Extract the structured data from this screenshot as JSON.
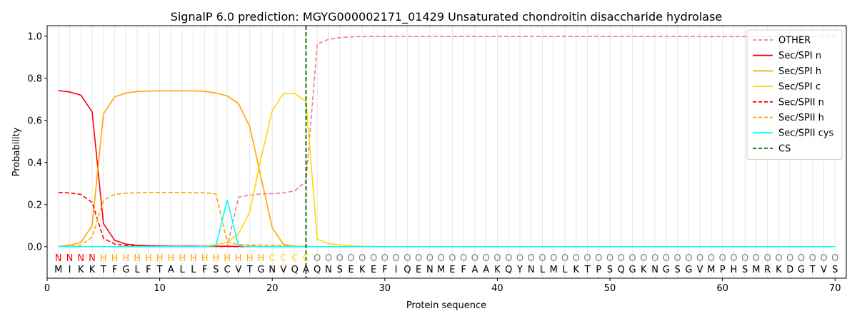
{
  "chart_data": {
    "type": "line",
    "title": "SignalP 6.0 prediction: MGYG000002171_01429 Unsaturated chondroitin disaccharide hydrolase",
    "xlabel": "Protein sequence",
    "ylabel": "Probability",
    "xlim": [
      0,
      71
    ],
    "ylim": [
      -0.15,
      1.05
    ],
    "x_ticks": [
      0,
      10,
      20,
      30,
      40,
      50,
      60,
      70
    ],
    "y_ticks": [
      0.0,
      0.2,
      0.4,
      0.6,
      0.8,
      1.0
    ],
    "x_tick_labels": [
      "0",
      "10",
      "20",
      "30",
      "40",
      "50",
      "60",
      "70"
    ],
    "y_tick_labels": [
      "0.0",
      "0.2",
      "0.4",
      "0.6",
      "0.8",
      "1.0"
    ],
    "grid": "vertical at each residue",
    "legend_position": "top-right",
    "sequence": [
      "M",
      "I",
      "K",
      "K",
      "T",
      "F",
      "G",
      "L",
      "F",
      "T",
      "A",
      "L",
      "L",
      "F",
      "S",
      "C",
      "V",
      "T",
      "G",
      "N",
      "V",
      "Q",
      "A",
      "Q",
      "N",
      "S",
      "E",
      "K",
      "E",
      "F",
      "I",
      "Q",
      "E",
      "N",
      "M",
      "E",
      "F",
      "A",
      "A",
      "K",
      "Q",
      "Y",
      "N",
      "L",
      "M",
      "L",
      "K",
      "T",
      "P",
      "S",
      "Q",
      "G",
      "K",
      "N",
      "G",
      "S",
      "G",
      "V",
      "M",
      "P",
      "H",
      "S",
      "M",
      "R",
      "K",
      "D",
      "G",
      "T",
      "V",
      "S"
    ],
    "region_labels": [
      "N",
      "N",
      "N",
      "N",
      "H",
      "H",
      "H",
      "H",
      "H",
      "H",
      "H",
      "H",
      "H",
      "H",
      "H",
      "H",
      "H",
      "H",
      "H",
      "C",
      "C",
      "C",
      "C",
      "O",
      "O",
      "O",
      "O",
      "O",
      "O",
      "O",
      "O",
      "O",
      "O",
      "O",
      "O",
      "O",
      "O",
      "O",
      "O",
      "O",
      "O",
      "O",
      "O",
      "O",
      "O",
      "O",
      "O",
      "O",
      "O",
      "O",
      "O",
      "O",
      "O",
      "O",
      "O",
      "O",
      "O",
      "O",
      "O",
      "O",
      "O",
      "O",
      "O",
      "O",
      "O",
      "O",
      "O",
      "O",
      "O",
      "O"
    ],
    "region_colors": {
      "N": "#ff0000",
      "H": "#ffa500",
      "C": "#ffd700",
      "O": "#808080"
    },
    "cs_position": 23,
    "series": [
      {
        "name": "OTHER",
        "color": "#f08080",
        "dash": "dashed",
        "values": [
          0.0,
          0.0,
          0.0,
          0.0,
          0.0,
          0.0,
          0.0,
          0.0,
          0.0,
          0.0,
          0.0,
          0.0,
          0.0,
          0.0,
          0.0,
          0.0,
          0.235,
          0.245,
          0.25,
          0.252,
          0.255,
          0.265,
          0.31,
          0.963,
          0.985,
          0.993,
          0.997,
          0.998,
          0.999,
          0.999,
          0.999,
          0.999,
          0.999,
          0.999,
          0.999,
          0.999,
          0.999,
          0.999,
          0.999,
          0.999,
          0.999,
          0.999,
          0.999,
          0.999,
          0.999,
          0.999,
          0.999,
          0.999,
          0.999,
          0.999,
          0.999,
          0.999,
          0.999,
          0.999,
          0.999,
          0.999,
          0.999,
          0.998,
          0.998,
          0.998,
          0.998,
          0.998,
          0.998,
          0.998,
          0.998,
          0.998,
          0.998,
          0.998,
          0.998,
          0.998
        ]
      },
      {
        "name": "Sec/SPI n",
        "color": "#ff0000",
        "dash": "solid",
        "values": [
          0.742,
          0.735,
          0.72,
          0.64,
          0.11,
          0.03,
          0.012,
          0.006,
          0.004,
          0.003,
          0.002,
          0.002,
          0.002,
          0.002,
          0.002,
          0.002,
          0.001,
          0.001,
          0.0,
          0.0,
          0.0,
          0.0,
          0.0,
          0.0,
          0.0,
          0.0,
          0.0,
          0.0,
          0.0,
          0.0,
          0.0,
          0.0,
          0.0,
          0.0,
          0.0,
          0.0,
          0.0,
          0.0,
          0.0,
          0.0,
          0.0,
          0.0,
          0.0,
          0.0,
          0.0,
          0.0,
          0.0,
          0.0,
          0.0,
          0.0,
          0.0,
          0.0,
          0.0,
          0.0,
          0.0,
          0.0,
          0.0,
          0.0,
          0.0,
          0.0,
          0.0,
          0.0,
          0.0,
          0.0,
          0.0,
          0.0,
          0.0,
          0.0,
          0.0,
          0.0
        ]
      },
      {
        "name": "Sec/SPI h",
        "color": "#ffa500",
        "dash": "solid",
        "values": [
          0.0,
          0.008,
          0.02,
          0.1,
          0.63,
          0.712,
          0.73,
          0.737,
          0.739,
          0.74,
          0.74,
          0.74,
          0.74,
          0.738,
          0.73,
          0.716,
          0.68,
          0.57,
          0.33,
          0.09,
          0.01,
          0.002,
          0.001,
          0.0,
          0.0,
          0.0,
          0.0,
          0.0,
          0.0,
          0.0,
          0.0,
          0.0,
          0.0,
          0.0,
          0.0,
          0.0,
          0.0,
          0.0,
          0.0,
          0.0,
          0.0,
          0.0,
          0.0,
          0.0,
          0.0,
          0.0,
          0.0,
          0.0,
          0.0,
          0.0,
          0.0,
          0.0,
          0.0,
          0.0,
          0.0,
          0.0,
          0.0,
          0.0,
          0.0,
          0.0,
          0.0,
          0.0,
          0.0,
          0.0,
          0.0,
          0.0,
          0.0,
          0.0,
          0.0,
          0.0
        ]
      },
      {
        "name": "Sec/SPI c",
        "color": "#ffd700",
        "dash": "solid",
        "values": [
          0.0,
          0.0,
          0.0,
          0.0,
          0.0,
          0.0,
          0.0,
          0.0,
          0.0,
          0.0,
          0.0,
          0.0,
          0.0,
          0.003,
          0.01,
          0.02,
          0.06,
          0.165,
          0.42,
          0.645,
          0.728,
          0.728,
          0.69,
          0.035,
          0.015,
          0.008,
          0.004,
          0.002,
          0.001,
          0.0,
          0.0,
          0.0,
          0.0,
          0.0,
          0.0,
          0.0,
          0.0,
          0.0,
          0.0,
          0.0,
          0.0,
          0.0,
          0.0,
          0.0,
          0.0,
          0.0,
          0.0,
          0.0,
          0.0,
          0.0,
          0.0,
          0.0,
          0.0,
          0.0,
          0.0,
          0.0,
          0.0,
          0.0,
          0.0,
          0.0,
          0.0,
          0.0,
          0.0,
          0.0,
          0.0,
          0.0,
          0.0,
          0.0,
          0.0,
          0.0
        ]
      },
      {
        "name": "Sec/SPII n",
        "color": "#ff0000",
        "dash": "dashed",
        "values": [
          0.258,
          0.255,
          0.248,
          0.21,
          0.04,
          0.012,
          0.005,
          0.003,
          0.002,
          0.002,
          0.001,
          0.001,
          0.001,
          0.001,
          0.001,
          0.001,
          0.0,
          0.0,
          0.0,
          0.0,
          0.0,
          0.0,
          0.0,
          0.0,
          0.0,
          0.0,
          0.0,
          0.0,
          0.0,
          0.0,
          0.0,
          0.0,
          0.0,
          0.0,
          0.0,
          0.0,
          0.0,
          0.0,
          0.0,
          0.0,
          0.0,
          0.0,
          0.0,
          0.0,
          0.0,
          0.0,
          0.0,
          0.0,
          0.0,
          0.0,
          0.0,
          0.0,
          0.0,
          0.0,
          0.0,
          0.0,
          0.0,
          0.0,
          0.0,
          0.0,
          0.0,
          0.0,
          0.0,
          0.0,
          0.0,
          0.0,
          0.0,
          0.0,
          0.0,
          0.0
        ]
      },
      {
        "name": "Sec/SPII h",
        "color": "#ffa500",
        "dash": "dashed",
        "values": [
          0.0,
          0.002,
          0.008,
          0.045,
          0.22,
          0.248,
          0.254,
          0.256,
          0.257,
          0.257,
          0.257,
          0.257,
          0.256,
          0.256,
          0.25,
          0.02,
          0.01,
          0.008,
          0.007,
          0.005,
          0.003,
          0.001,
          0.0,
          0.0,
          0.0,
          0.0,
          0.0,
          0.0,
          0.0,
          0.0,
          0.0,
          0.0,
          0.0,
          0.0,
          0.0,
          0.0,
          0.0,
          0.0,
          0.0,
          0.0,
          0.0,
          0.0,
          0.0,
          0.0,
          0.0,
          0.0,
          0.0,
          0.0,
          0.0,
          0.0,
          0.0,
          0.0,
          0.0,
          0.0,
          0.0,
          0.0,
          0.0,
          0.0,
          0.0,
          0.0,
          0.0,
          0.0,
          0.0,
          0.0,
          0.0,
          0.0,
          0.0,
          0.0,
          0.0,
          0.0
        ]
      },
      {
        "name": "Sec/SPII cys",
        "color": "#00ffff",
        "dash": "solid",
        "values": [
          0.0,
          0.0,
          0.0,
          0.0,
          0.0,
          0.0,
          0.0,
          0.0,
          0.0,
          0.0,
          0.0,
          0.0,
          0.0,
          0.0,
          0.005,
          0.222,
          0.005,
          0.0,
          0.0,
          0.0,
          0.0,
          0.0,
          0.0,
          0.0,
          0.0,
          0.0,
          0.0,
          0.0,
          0.0,
          0.0,
          0.0,
          0.0,
          0.0,
          0.0,
          0.0,
          0.0,
          0.0,
          0.0,
          0.0,
          0.0,
          0.0,
          0.0,
          0.0,
          0.0,
          0.0,
          0.0,
          0.0,
          0.0,
          0.0,
          0.0,
          0.0,
          0.0,
          0.0,
          0.0,
          0.0,
          0.0,
          0.0,
          0.0,
          0.0,
          0.0,
          0.0,
          0.0,
          0.0,
          0.0,
          0.0,
          0.0,
          0.0,
          0.0,
          0.0,
          0.0
        ]
      }
    ],
    "cs_legend": {
      "name": "CS",
      "color": "#006400",
      "dash": "dashed"
    }
  }
}
